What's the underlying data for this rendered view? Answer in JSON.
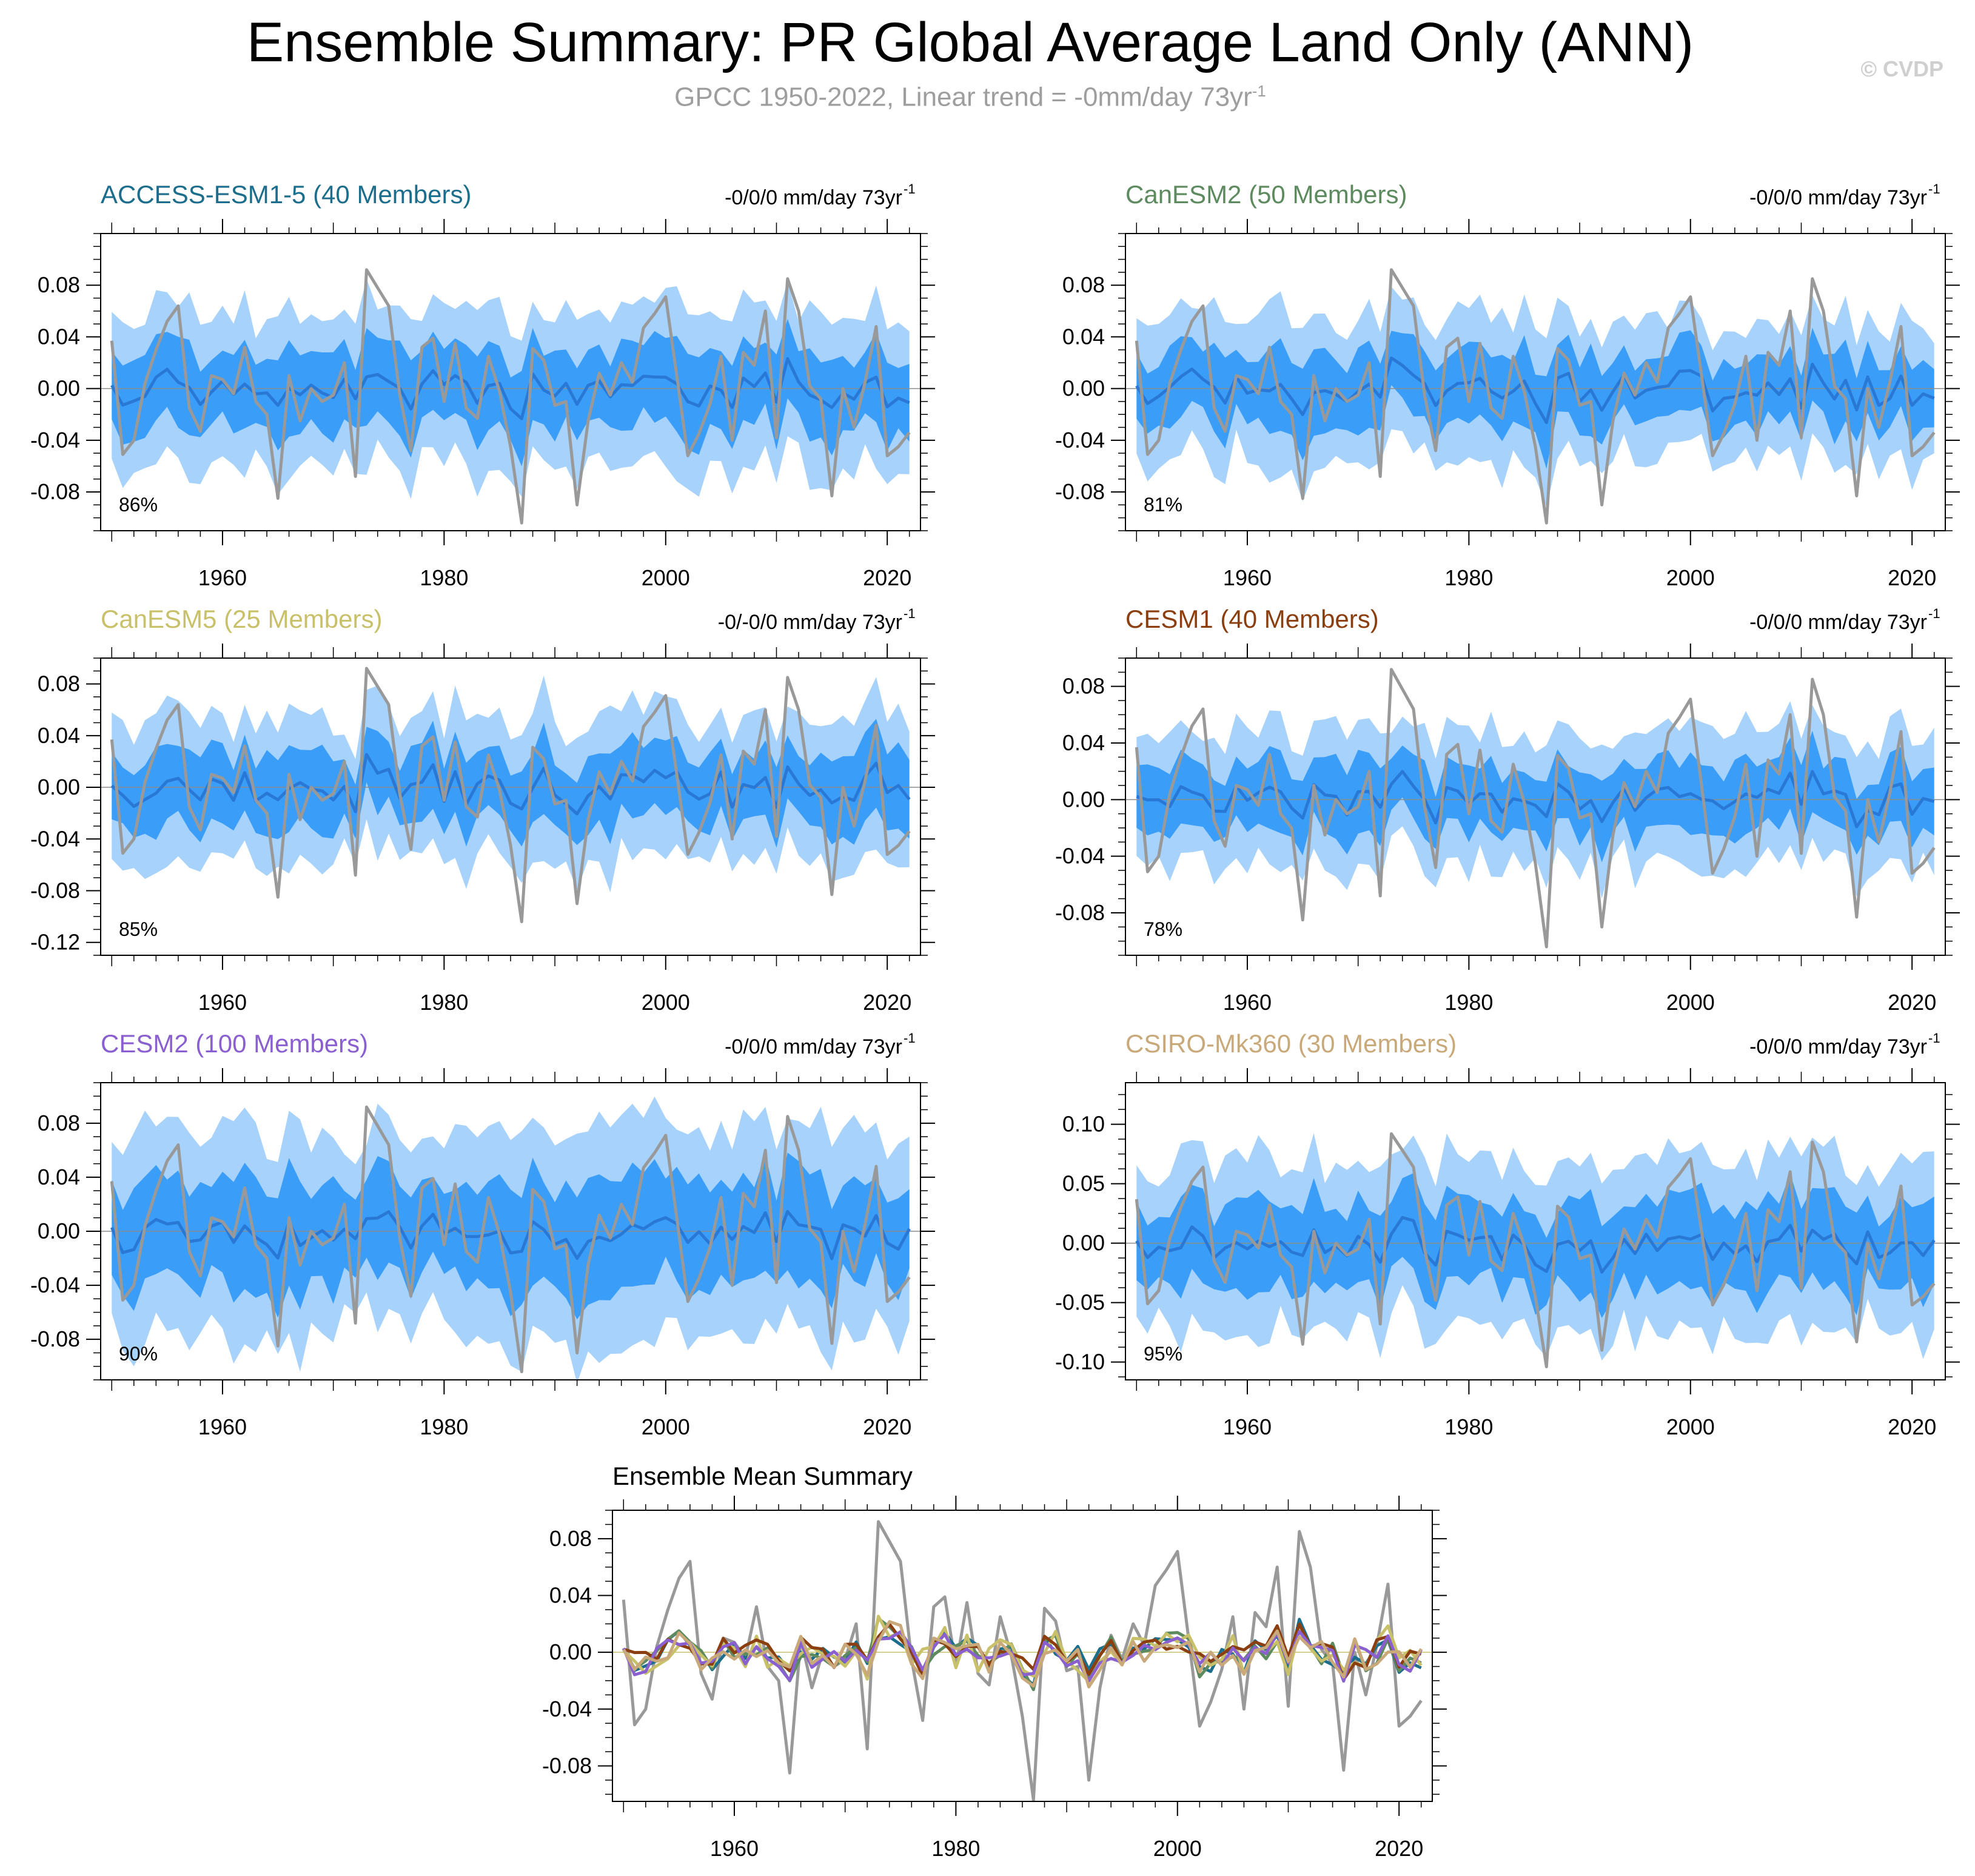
{
  "page": {
    "title": "Ensemble Summary: PR Global Average Land Only (ANN)",
    "subtitle_text": "GPCC 1950-2022, Linear trend = -0mm/day 73yr",
    "subtitle_sup": "-1",
    "copyright": "© CVDP"
  },
  "colors": {
    "band_outer": "#a7d2fb",
    "band_inner": "#3a9ef8",
    "ens_mean": "#2a78d6",
    "obs": "#999999",
    "zero_line": "#8c8c8c"
  },
  "chart_data": [
    {
      "id": "access",
      "type": "line",
      "title": "ACCESS-ESM1-5 (40 Members)",
      "title_color": "#1c6e8c",
      "trend_label": "-0/0/0 mm/day 73yr",
      "trend_sup": "-1",
      "percent_label": "86%",
      "xlim": [
        1949,
        2023
      ],
      "ylim": [
        -0.11,
        0.12
      ],
      "yticks": [
        -0.08,
        -0.04,
        0.0,
        0.04,
        0.08
      ],
      "ytick_labels": [
        "-0.08",
        "-0.04",
        "0.00",
        "0.04",
        "0.08"
      ],
      "xticks": [
        1960,
        1980,
        2000,
        2020
      ],
      "xtick_labels": [
        "1960",
        "1980",
        "2000",
        "2020"
      ],
      "band_scale": 1.0,
      "mean_seed": 11,
      "mean_amp": 0.008
    },
    {
      "id": "canesm2",
      "type": "line",
      "title": "CanESM2 (50 Members)",
      "title_color": "#5d8a5e",
      "trend_label": "-0/0/0 mm/day 73yr",
      "trend_sup": "-1",
      "percent_label": "81%",
      "xlim": [
        1949,
        2023
      ],
      "ylim": [
        -0.11,
        0.12
      ],
      "yticks": [
        -0.08,
        -0.04,
        0.0,
        0.04,
        0.08
      ],
      "ytick_labels": [
        "-0.08",
        "-0.04",
        "0.00",
        "0.04",
        "0.08"
      ],
      "xticks": [
        1960,
        1980,
        2000,
        2020
      ],
      "xtick_labels": [
        "1960",
        "1980",
        "2000",
        "2020"
      ],
      "band_scale": 0.95,
      "mean_seed": 23,
      "mean_amp": 0.009
    },
    {
      "id": "canesm5",
      "type": "line",
      "title": "CanESM5 (25 Members)",
      "title_color": "#c9c06a",
      "trend_label": "-0/-0/0 mm/day 73yr",
      "trend_sup": "-1",
      "percent_label": "85%",
      "xlim": [
        1949,
        2023
      ],
      "ylim": [
        -0.13,
        0.1
      ],
      "yticks": [
        -0.12,
        -0.08,
        -0.04,
        0.0,
        0.04,
        0.08
      ],
      "ytick_labels": [
        "-0.12",
        "-0.08",
        "-0.04",
        "0.00",
        "0.04",
        "0.08"
      ],
      "xticks": [
        1960,
        1980,
        2000,
        2020
      ],
      "xtick_labels": [
        "1960",
        "1980",
        "2000",
        "2020"
      ],
      "band_scale": 0.95,
      "mean_seed": 37,
      "mean_amp": 0.011
    },
    {
      "id": "cesm1",
      "type": "line",
      "title": "CESM1 (40 Members)",
      "title_color": "#8b3e0f",
      "trend_label": "-0/0/0 mm/day 73yr",
      "trend_sup": "-1",
      "percent_label": "78%",
      "xlim": [
        1949,
        2023
      ],
      "ylim": [
        -0.11,
        0.1
      ],
      "yticks": [
        -0.08,
        -0.04,
        0.0,
        0.04,
        0.08
      ],
      "ytick_labels": [
        "-0.08",
        "-0.04",
        "0.00",
        "0.04",
        "0.08"
      ],
      "xticks": [
        1960,
        1980,
        2000,
        2020
      ],
      "xtick_labels": [
        "1960",
        "1980",
        "2000",
        "2020"
      ],
      "band_scale": 0.8,
      "mean_seed": 41,
      "mean_amp": 0.009
    },
    {
      "id": "cesm2",
      "type": "line",
      "title": "CESM2 (100 Members)",
      "title_color": "#8a5fd0",
      "trend_label": "-0/0/0 mm/day 73yr",
      "trend_sup": "-1",
      "percent_label": "90%",
      "xlim": [
        1949,
        2023
      ],
      "ylim": [
        -0.11,
        0.11
      ],
      "yticks": [
        -0.08,
        -0.04,
        0.0,
        0.04,
        0.08
      ],
      "ytick_labels": [
        "-0.08",
        "-0.04",
        "0.00",
        "0.04",
        "0.08"
      ],
      "xticks": [
        1960,
        1980,
        2000,
        2020
      ],
      "xtick_labels": [
        "1960",
        "1980",
        "2000",
        "2020"
      ],
      "band_scale": 1.25,
      "mean_seed": 53,
      "mean_amp": 0.008
    },
    {
      "id": "csiro",
      "type": "line",
      "title": "CSIRO-Mk360 (30 Members)",
      "title_color": "#c9a97a",
      "trend_label": "-0/0/0 mm/day 73yr",
      "trend_sup": "-1",
      "percent_label": "95%",
      "xlim": [
        1949,
        2023
      ],
      "ylim": [
        -0.115,
        0.135
      ],
      "yticks": [
        -0.1,
        -0.05,
        0.0,
        0.05,
        0.1
      ],
      "ytick_labels": [
        "-0.10",
        "-0.05",
        "0.00",
        "0.05",
        "0.10"
      ],
      "xticks": [
        1960,
        1980,
        2000,
        2020
      ],
      "xtick_labels": [
        "1960",
        "1980",
        "2000",
        "2020"
      ],
      "band_scale": 1.15,
      "mean_seed": 67,
      "mean_amp": 0.01
    }
  ],
  "summary_chart": {
    "type": "line",
    "title": "Ensemble Mean Summary",
    "xlim": [
      1949,
      2023
    ],
    "ylim": [
      -0.105,
      0.1
    ],
    "yticks": [
      -0.08,
      -0.04,
      0.0,
      0.04,
      0.08
    ],
    "ytick_labels": [
      "-0.08",
      "-0.04",
      "0.00",
      "0.04",
      "0.08"
    ],
    "xticks": [
      1960,
      1980,
      2000,
      2020
    ],
    "xtick_labels": [
      "1960",
      "1980",
      "2000",
      "2020"
    ],
    "series_colors": [
      "#1c6e8c",
      "#5d8a5e",
      "#c9c06a",
      "#8b3e0f",
      "#8a5fd0",
      "#c9a97a"
    ]
  },
  "observed": {
    "name": "GPCC",
    "years": [
      1950,
      1951,
      1952,
      1953,
      1954,
      1955,
      1956,
      1957,
      1958,
      1959,
      1960,
      1961,
      1962,
      1963,
      1964,
      1965,
      1966,
      1967,
      1968,
      1969,
      1970,
      1971,
      1972,
      1973,
      1974,
      1975,
      1976,
      1977,
      1978,
      1979,
      1980,
      1981,
      1982,
      1983,
      1984,
      1985,
      1986,
      1987,
      1988,
      1989,
      1990,
      1991,
      1992,
      1993,
      1994,
      1995,
      1996,
      1997,
      1998,
      1999,
      2000,
      2001,
      2002,
      2003,
      2004,
      2005,
      2006,
      2007,
      2008,
      2009,
      2010,
      2011,
      2012,
      2013,
      2014,
      2015,
      2016,
      2017,
      2018,
      2019,
      2020,
      2021,
      2022
    ],
    "values": [
      0.037,
      -0.051,
      -0.04,
      0.004,
      0.03,
      0.052,
      0.064,
      -0.015,
      -0.033,
      0.01,
      0.007,
      -0.004,
      0.032,
      -0.01,
      -0.02,
      -0.085,
      0.01,
      -0.025,
      0.0,
      -0.01,
      -0.005,
      0.02,
      -0.068,
      0.092,
      0.078,
      0.064,
      -0.005,
      -0.048,
      0.032,
      0.039,
      -0.01,
      0.035,
      -0.015,
      -0.023,
      0.025,
      -0.002,
      -0.045,
      -0.104,
      0.031,
      0.022,
      -0.013,
      -0.01,
      -0.09,
      -0.025,
      0.012,
      -0.005,
      0.02,
      0.005,
      0.047,
      0.058,
      0.071,
      0.01,
      -0.052,
      -0.035,
      -0.012,
      0.025,
      -0.04,
      0.028,
      0.018,
      0.06,
      -0.038,
      0.085,
      0.06,
      0.002,
      -0.008,
      -0.083,
      0.0,
      -0.03,
      0.005,
      0.048,
      -0.052,
      -0.045,
      -0.034
    ]
  }
}
